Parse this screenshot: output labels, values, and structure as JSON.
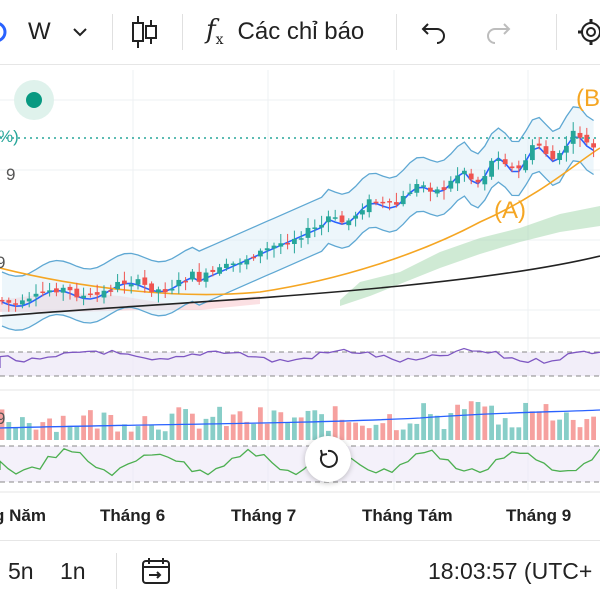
{
  "toolbar": {
    "interval_label": "W",
    "indicators_label": "Các chỉ báo"
  },
  "chart": {
    "price_label_pct": "%)",
    "price_label_9": "9",
    "price_label_9b": "9",
    "subpane_label_9": "9",
    "wave_a": "(A)",
    "wave_b": "(B",
    "x_labels": [
      "g Năm",
      "Tháng 6",
      "Tháng 7",
      "Tháng Tám",
      "Tháng 9"
    ]
  },
  "bottom": {
    "range_5n": "5n",
    "range_1n": "1n",
    "clock": "18:03:57 (UTC+"
  },
  "colors": {
    "up": "#26a69a",
    "down": "#ef5350",
    "ma_blue": "#2962ff",
    "ma_orange": "#f5a623",
    "ma_black": "#222222",
    "bb": "#5fa8d3",
    "cloud": "#a8d8b0",
    "rsi": "#7e57c2",
    "green_line": "#4caf50"
  }
}
